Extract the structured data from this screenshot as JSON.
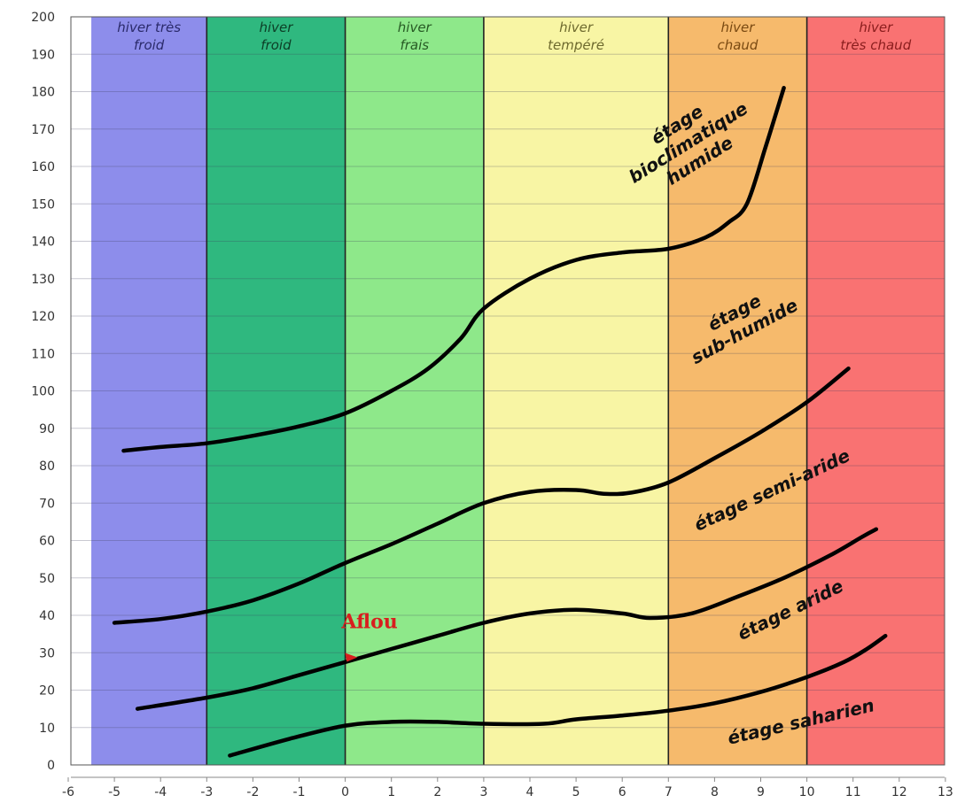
{
  "chart_data": {
    "type": "line",
    "x_ticks": [
      "-6",
      "-5",
      "-4",
      "-3",
      "-2",
      "-1",
      "0",
      "1",
      "2",
      "3",
      "4",
      "5",
      "6",
      "7",
      "8",
      "9",
      "10",
      "11",
      "12",
      "13"
    ],
    "y_ticks": [
      "0",
      "10",
      "20",
      "30",
      "40",
      "50",
      "60",
      "70",
      "80",
      "90",
      "100",
      "110",
      "120",
      "130",
      "140",
      "150",
      "160",
      "170",
      "180",
      "190",
      "200"
    ],
    "xlim": [
      -6,
      13
    ],
    "ylim": [
      0,
      200
    ],
    "grid": true,
    "bands": [
      {
        "from": -5.5,
        "to": -3,
        "line1": "hiver  très",
        "line2": "froid",
        "color": "#8d8deb",
        "text_color": "#2a2a6a"
      },
      {
        "from": -3,
        "to": 0,
        "line1": "hiver",
        "line2": "froid",
        "color": "#2fb87f",
        "text_color": "#0c3e26"
      },
      {
        "from": 0,
        "to": 3,
        "line1": "hiver",
        "line2": "frais",
        "color": "#8ee88a",
        "text_color": "#275a24"
      },
      {
        "from": 3,
        "to": 7,
        "line1": "hiver",
        "line2": "tempéré",
        "color": "#f8f5a4",
        "text_color": "#6e6a2e"
      },
      {
        "from": 7,
        "to": 10,
        "line1": "hiver",
        "line2": "chaud",
        "color": "#f6ba6c",
        "text_color": "#7a4a12"
      },
      {
        "from": 10,
        "to": 13,
        "line1": "hiver",
        "line2": "très chaud",
        "color": "#f97272",
        "text_color": "#8a1d1d"
      }
    ],
    "series": [
      {
        "points": [
          [
            -4.8,
            84
          ],
          [
            -4,
            85
          ],
          [
            -3,
            86
          ],
          [
            -2,
            88
          ],
          [
            -1,
            90.5
          ],
          [
            0,
            94
          ],
          [
            1,
            100
          ],
          [
            1.8,
            106
          ],
          [
            2.5,
            114
          ],
          [
            3,
            122
          ],
          [
            4,
            130
          ],
          [
            5,
            135
          ],
          [
            6,
            137
          ],
          [
            7,
            138
          ],
          [
            7.8,
            141
          ],
          [
            8.3,
            145
          ],
          [
            8.7,
            150
          ],
          [
            9.1,
            165
          ],
          [
            9.5,
            181
          ]
        ]
      },
      {
        "points": [
          [
            -5,
            38
          ],
          [
            -4,
            39
          ],
          [
            -3,
            41
          ],
          [
            -2,
            44
          ],
          [
            -1,
            48.5
          ],
          [
            0,
            54
          ],
          [
            1,
            59
          ],
          [
            2,
            64.5
          ],
          [
            3,
            70
          ],
          [
            4,
            73
          ],
          [
            5,
            73.5
          ],
          [
            5.6,
            72.5
          ],
          [
            6.2,
            72.8
          ],
          [
            7,
            75.5
          ],
          [
            8,
            82
          ],
          [
            9,
            89
          ],
          [
            10,
            97
          ],
          [
            10.9,
            106
          ]
        ]
      },
      {
        "points": [
          [
            -4.5,
            15
          ],
          [
            -3,
            18
          ],
          [
            -2,
            20.5
          ],
          [
            -1,
            24
          ],
          [
            0,
            27.5
          ],
          [
            1,
            31
          ],
          [
            2,
            34.5
          ],
          [
            3,
            38
          ],
          [
            4,
            40.5
          ],
          [
            5,
            41.5
          ],
          [
            6,
            40.5
          ],
          [
            6.6,
            39.3
          ],
          [
            7.5,
            40.5
          ],
          [
            8.5,
            45
          ],
          [
            9.5,
            50
          ],
          [
            10.5,
            56
          ],
          [
            11.2,
            61
          ],
          [
            11.5,
            63
          ]
        ]
      },
      {
        "points": [
          [
            -2.5,
            2.5
          ],
          [
            -1.2,
            7
          ],
          [
            0,
            10.5
          ],
          [
            1,
            11.5
          ],
          [
            2,
            11.5
          ],
          [
            3,
            11
          ],
          [
            4.3,
            11
          ],
          [
            5,
            12.2
          ],
          [
            6,
            13.2
          ],
          [
            7,
            14.5
          ],
          [
            8,
            16.5
          ],
          [
            9,
            19.5
          ],
          [
            10,
            23.5
          ],
          [
            10.8,
            27.5
          ],
          [
            11.3,
            31
          ],
          [
            11.7,
            34.5
          ]
        ]
      }
    ],
    "zones": [
      {
        "lines": [
          "étage",
          "bioclimatique",
          "humide"
        ],
        "x": 7.5,
        "y": 165,
        "angle": -32
      },
      {
        "lines": [
          "étage",
          "sub-humide"
        ],
        "x": 8.6,
        "y": 117,
        "angle": -28
      },
      {
        "lines": [
          "étage semi-aride"
        ],
        "x": 9.3,
        "y": 72,
        "angle": -25
      },
      {
        "lines": [
          "étage aride"
        ],
        "x": 9.7,
        "y": 40,
        "angle": -26
      },
      {
        "lines": [
          "étage saharien"
        ],
        "x": 9.9,
        "y": 10,
        "angle": -13
      }
    ],
    "annotation": {
      "text": "Aflou",
      "x": 0.15,
      "y": 29,
      "color": "#d81e1e"
    }
  }
}
